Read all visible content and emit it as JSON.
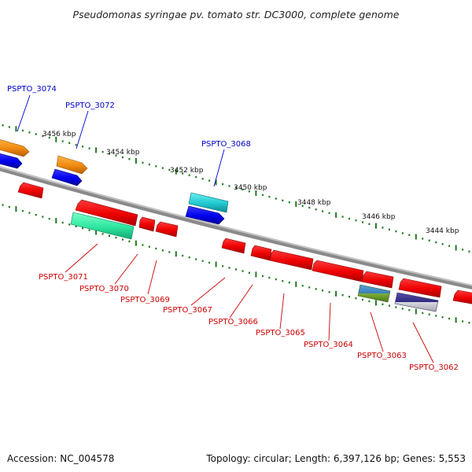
{
  "title": "Pseudomonas syringae pv. tomato str. DC3000, complete genome",
  "footer": {
    "accession": "Accession: NC_004578",
    "summary": "Topology: circular; Length: 6,397,126 bp; Genes: 5,553"
  },
  "scale_labels": [
    "3456 kbp",
    "3454 kbp",
    "3452 kbp",
    "3450 kbp",
    "3448 kbp",
    "3446 kbp",
    "3444 kbp"
  ],
  "strand_colors": {
    "forward": "#0000cc",
    "reverse": "#cc0000"
  },
  "forward_gene_labels": [
    "PSPTO_3074",
    "PSPTO_3072",
    "PSPTO_3068"
  ],
  "reverse_gene_labels": [
    "PSPTO_3071",
    "PSPTO_3070",
    "PSPTO_3069",
    "PSPTO_3067",
    "PSPTO_3066",
    "PSPTO_3065",
    "PSPTO_3064",
    "PSPTO_3063",
    "PSPTO_3062"
  ]
}
